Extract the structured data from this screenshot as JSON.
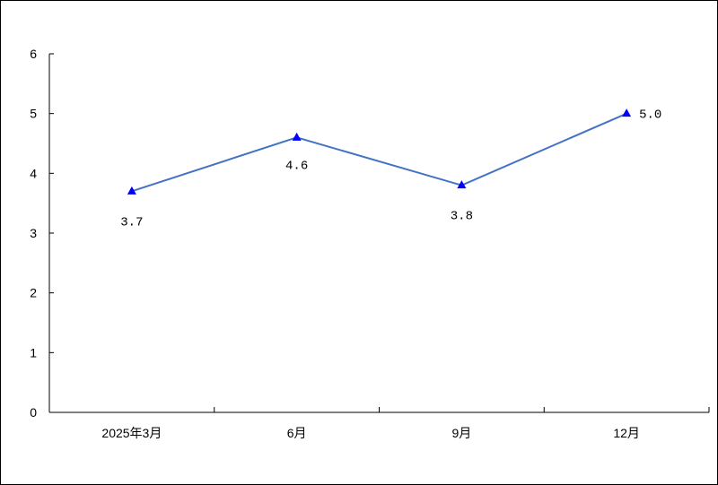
{
  "chart_data": {
    "type": "line",
    "categories": [
      "2025年3月",
      "6月",
      "9月",
      "12月"
    ],
    "series": [
      {
        "values": [
          3.7,
          4.6,
          3.8,
          5.0
        ],
        "labels": [
          "3.7",
          "4.6",
          "3.8",
          "5.0"
        ],
        "color": "#4472C4",
        "marker": "triangle",
        "marker_color": "#0000FF"
      }
    ],
    "title": "",
    "xlabel": "",
    "ylabel": "",
    "ylim": [
      0,
      6
    ],
    "yticks": [
      "0",
      "1",
      "2",
      "3",
      "4",
      "5",
      "6"
    ],
    "grid": false,
    "legend": "none"
  }
}
